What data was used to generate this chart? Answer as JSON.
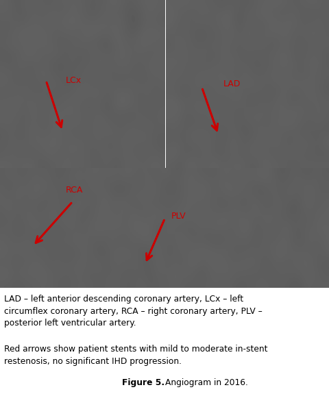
{
  "fig_width": 4.81,
  "fig_height": 6.1,
  "dpi": 100,
  "bg_color": "#ffffff",
  "top_left_panel": {
    "label": "LCx"
  },
  "top_right_panel": {
    "label": "LAD"
  },
  "bottom_panel": {
    "label_plv": "PLV",
    "label_rca": "RCA"
  },
  "caption_line1": "LAD – left anterior descending coronary artery, LCx – left",
  "caption_line2": "circumflex coronary artery, RCA – right coronary artery, PLV –",
  "caption_line3": "posterior left ventricular artery.",
  "caption_line4": "Red arrows show patient stents with mild to moderate in-stent",
  "caption_line5": "restenosis, no significant IHD progression.",
  "figure_label_bold": "Figure 5.",
  "figure_label_normal": "Angiogram in 2016.",
  "arrow_color": "#cc0000",
  "label_color": "#cc0000",
  "caption_color": "#000000",
  "caption_fontsize": 8.8,
  "figure_label_fontsize": 8.8
}
